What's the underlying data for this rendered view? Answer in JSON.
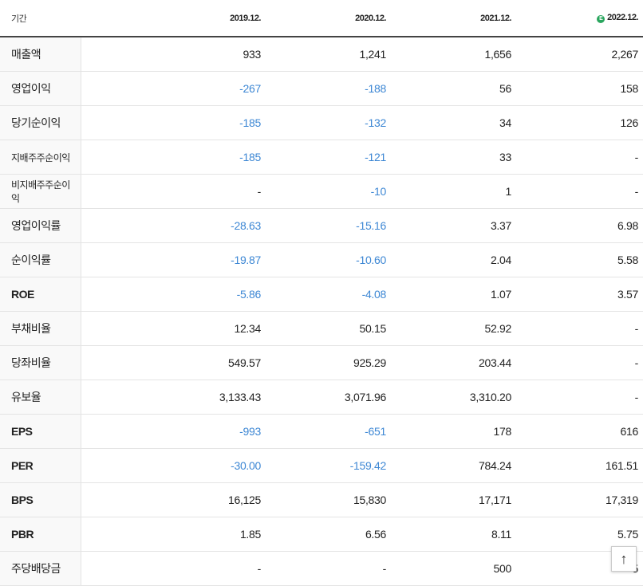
{
  "header": {
    "label": "기간",
    "periods": [
      "2019.12.",
      "2020.12.",
      "2021.12.",
      "2022.12."
    ],
    "estimate_mark": "E"
  },
  "rows": [
    {
      "label": "매출액",
      "values": [
        "933",
        "1,241",
        "1,656",
        "2,267"
      ]
    },
    {
      "label": "영업이익",
      "values": [
        "-267",
        "-188",
        "56",
        "158"
      ]
    },
    {
      "label": "당기순이익",
      "values": [
        "-185",
        "-132",
        "34",
        "126"
      ]
    },
    {
      "label": "지배주주순이익",
      "values": [
        "-185",
        "-121",
        "33",
        "-"
      ]
    },
    {
      "label": "비지배주주순이익",
      "values": [
        "-",
        "-10",
        "1",
        "-"
      ]
    },
    {
      "label": "영업이익률",
      "values": [
        "-28.63",
        "-15.16",
        "3.37",
        "6.98"
      ]
    },
    {
      "label": "순이익률",
      "values": [
        "-19.87",
        "-10.60",
        "2.04",
        "5.58"
      ]
    },
    {
      "label": "ROE",
      "values": [
        "-5.86",
        "-4.08",
        "1.07",
        "3.57"
      ]
    },
    {
      "label": "부채비율",
      "values": [
        "12.34",
        "50.15",
        "52.92",
        "-"
      ]
    },
    {
      "label": "당좌비율",
      "values": [
        "549.57",
        "925.29",
        "203.44",
        "-"
      ]
    },
    {
      "label": "유보율",
      "values": [
        "3,133.43",
        "3,071.96",
        "3,310.20",
        "-"
      ]
    },
    {
      "label": "EPS",
      "values": [
        "-993",
        "-651",
        "178",
        "616"
      ]
    },
    {
      "label": "PER",
      "values": [
        "-30.00",
        "-159.42",
        "784.24",
        "161.51"
      ]
    },
    {
      "label": "BPS",
      "values": [
        "16,125",
        "15,830",
        "17,171",
        "17,319"
      ]
    },
    {
      "label": "PBR",
      "values": [
        "1.85",
        "6.56",
        "8.11",
        "5.75"
      ]
    },
    {
      "label": "주당배당금",
      "values": [
        "-",
        "-",
        "500",
        "5"
      ]
    }
  ],
  "scroll_top_icon": "arrow-up-icon"
}
